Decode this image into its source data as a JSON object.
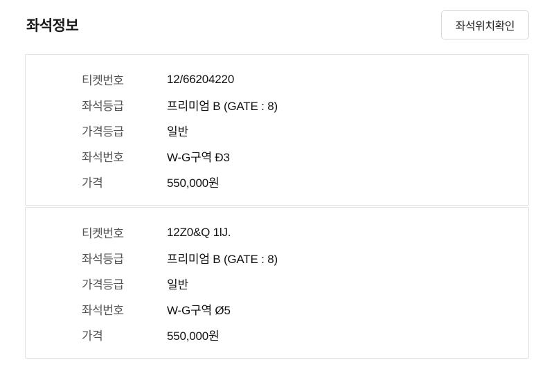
{
  "header": {
    "title": "좌석정보",
    "seat_location_button": "좌석위치확인"
  },
  "field_labels": {
    "ticket_number": "티켓번호",
    "seat_grade": "좌석등급",
    "price_grade": "가격등급",
    "seat_number": "좌석번호",
    "price": "가격"
  },
  "tickets": [
    {
      "ticket_number": "12/66204220",
      "seat_grade": "프리미엄 B (GATE : 8)",
      "price_grade": "일반",
      "seat_number": "W-G구역 Ð3",
      "price": "550,000원"
    },
    {
      "ticket_number": "12Z0&Q 1lJ.",
      "seat_grade": "프리미엄 B (GATE : 8)",
      "price_grade": "일반",
      "seat_number": "W-G구역 Ø5",
      "price": "550,000원"
    }
  ],
  "colors": {
    "title_text": "#1a1a1a",
    "label_text": "#555555",
    "value_text": "#111111",
    "box_border": "#e2e2e2",
    "button_border": "#d8d8d8"
  }
}
